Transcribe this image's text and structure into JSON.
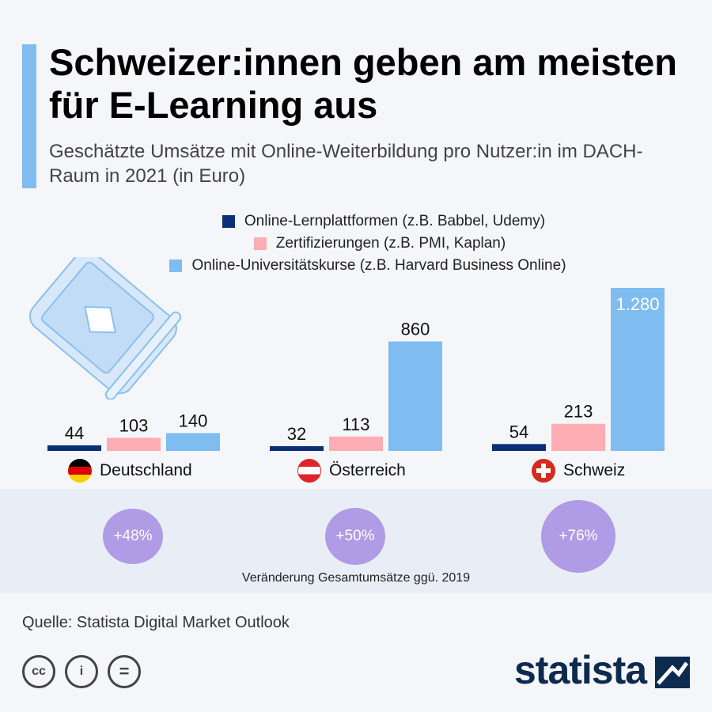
{
  "title": "Schweizer:innen geben am meisten für E-Learning aus",
  "subtitle": "Geschätzte Umsätze mit Online-Weiterbildung pro Nutzer:in im DACH-Raum in 2021 (in Euro)",
  "chart_data": {
    "type": "bar",
    "categories": [
      "Deutschland",
      "Österreich",
      "Schweiz"
    ],
    "series": [
      {
        "name": "Online-Lernplattformen (z.B. Babbel, Udemy)",
        "color": "#0d2f75",
        "values": [
          44,
          32,
          54
        ],
        "labels": [
          "44",
          "32",
          "54"
        ]
      },
      {
        "name": "Zertifizierungen (z.B. PMI, Kaplan)",
        "color": "#ffadb4",
        "values": [
          103,
          113,
          213
        ],
        "labels": [
          "103",
          "113",
          "213"
        ]
      },
      {
        "name": "Online-Universitätskurse (z.B. Harvard Business Online)",
        "color": "#7fbdf0",
        "values": [
          140,
          860,
          1280
        ],
        "labels": [
          "140",
          "860",
          "1.280"
        ]
      }
    ],
    "legend": "top-center",
    "grid": false
  },
  "change": {
    "values": [
      "+48%",
      "+50%",
      "+76%"
    ],
    "caption": "Veränderung Gesamtumsätze ggü. 2019",
    "color": "#b09be6"
  },
  "source": "Quelle: Statista Digital Market Outlook",
  "license_icons": [
    "cc-icon",
    "attribution-icon",
    "no-derivatives-icon"
  ],
  "logo": "statista"
}
